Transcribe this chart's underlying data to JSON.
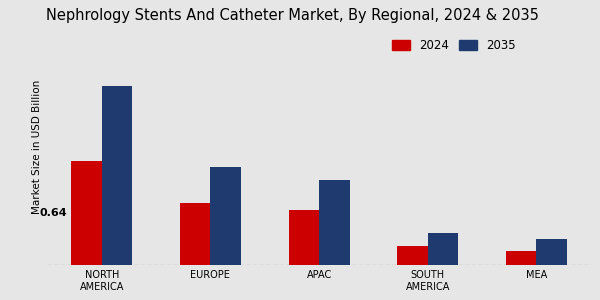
{
  "title": "Nephrology Stents And Catheter Market, By Regional, 2024 & 2035",
  "ylabel": "Market Size in USD Billion",
  "categories": [
    "NORTH\nAMERICA",
    "EUROPE",
    "APAC",
    "SOUTH\nAMERICA",
    "MEA"
  ],
  "values_2024": [
    0.64,
    0.38,
    0.34,
    0.12,
    0.09
  ],
  "values_2035": [
    1.1,
    0.6,
    0.52,
    0.2,
    0.16
  ],
  "color_2024": "#cc0000",
  "color_2035": "#1e3a6e",
  "annotation_value": "0.64",
  "annotation_index": 0,
  "background_color": "#e6e6e6",
  "bar_width": 0.28,
  "ylim": [
    0,
    1.45
  ],
  "legend_labels": [
    "2024",
    "2035"
  ],
  "title_fontsize": 10.5,
  "ylabel_fontsize": 7.5,
  "tick_fontsize": 7,
  "legend_fontsize": 8.5
}
